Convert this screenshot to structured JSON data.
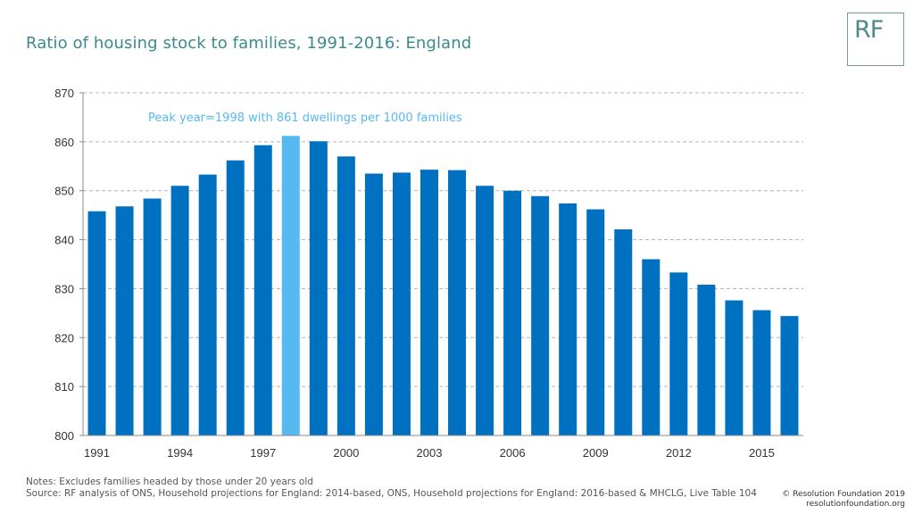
{
  "title": "Ratio of housing stock to families, 1991-2016: England",
  "logo": {
    "text": "RF"
  },
  "notes": {
    "line1": "Notes: Excludes families headed by those under 20 years old",
    "line2": "Source: RF analysis of ONS, Household projections for England: 2014-based, ONS, Household projections for England: 2016-based & MHCLG, Live Table 104"
  },
  "copyright": {
    "line1": "© Resolution Foundation 2019",
    "line2": "resolutionfoundation.org"
  },
  "chart_data": {
    "type": "bar",
    "categories": [
      "1991",
      "1992",
      "1993",
      "1994",
      "1995",
      "1996",
      "1997",
      "1998",
      "1999",
      "2000",
      "2001",
      "2002",
      "2003",
      "2004",
      "2005",
      "2006",
      "2007",
      "2008",
      "2009",
      "2010",
      "2011",
      "2012",
      "2013",
      "2014",
      "2015",
      "2016"
    ],
    "x_tick_labels": [
      "1991",
      "1994",
      "1997",
      "2000",
      "2003",
      "2006",
      "2009",
      "2012",
      "2015"
    ],
    "values": [
      845.8,
      846.8,
      848.4,
      851.0,
      853.3,
      856.2,
      859.3,
      861.2,
      860.1,
      857.0,
      853.5,
      853.7,
      854.3,
      854.2,
      851.0,
      850.0,
      848.9,
      847.4,
      846.2,
      842.1,
      836.0,
      833.3,
      830.8,
      827.6,
      825.6,
      824.4
    ],
    "ylim": [
      800,
      870
    ],
    "y_ticks": [
      800,
      810,
      820,
      830,
      840,
      850,
      860,
      870
    ],
    "grid": true,
    "highlight_category": "1998",
    "annotation": "Peak year=1998 with 861 dwellings per 1000 families",
    "colors": {
      "bar": "#0070c0",
      "highlight": "#56b9f0",
      "annotation": "#56b9f0",
      "grid": "#b3b3b3",
      "axis": "#888888"
    }
  }
}
